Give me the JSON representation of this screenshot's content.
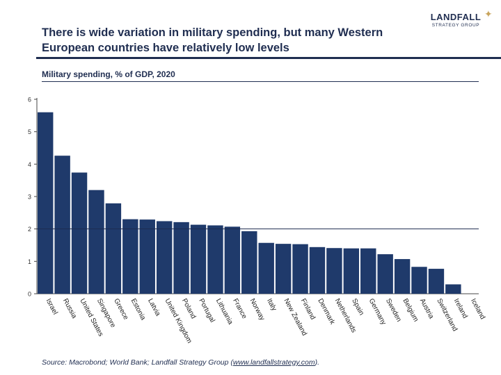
{
  "headline": "There is wide variation in military spending, but many Western European countries have relatively low levels",
  "logo": {
    "name": "LANDFALL",
    "sub": "STRATEGY GROUP"
  },
  "source": {
    "prefix": "Source: Macrobond; World Bank; Landfall Strategy Group (",
    "link": "www.landfallstrategy.com",
    "suffix": ")."
  },
  "colors": {
    "bar": "#1f3a6b",
    "text": "#1f2d50",
    "reference_line": "#1f2d50"
  },
  "chart_data": {
    "type": "bar",
    "title": "Military spending, % of GDP, 2020",
    "xlabel": "",
    "ylabel": "",
    "ylim": [
      0,
      6
    ],
    "yticks": [
      0,
      1,
      2,
      3,
      4,
      5,
      6
    ],
    "grid": false,
    "reference_line": 2,
    "categories": [
      "Israel",
      "Russia",
      "United States",
      "Singapore",
      "Greece",
      "Estonia",
      "Latvia",
      "United Kingdom",
      "Poland",
      "Portugal",
      "Lithuania",
      "France",
      "Norway",
      "Italy",
      "New Zealand",
      "Finland",
      "Denmark",
      "Netherlands",
      "Spain",
      "Germany",
      "Sweden",
      "Belgium",
      "Austria",
      "Switzerland",
      "Ireland",
      "Iceland"
    ],
    "values": [
      5.6,
      4.26,
      3.74,
      3.2,
      2.79,
      2.3,
      2.29,
      2.24,
      2.21,
      2.13,
      2.11,
      2.07,
      1.93,
      1.57,
      1.54,
      1.53,
      1.44,
      1.41,
      1.4,
      1.4,
      1.22,
      1.07,
      0.83,
      0.77,
      0.29,
      0
    ]
  }
}
